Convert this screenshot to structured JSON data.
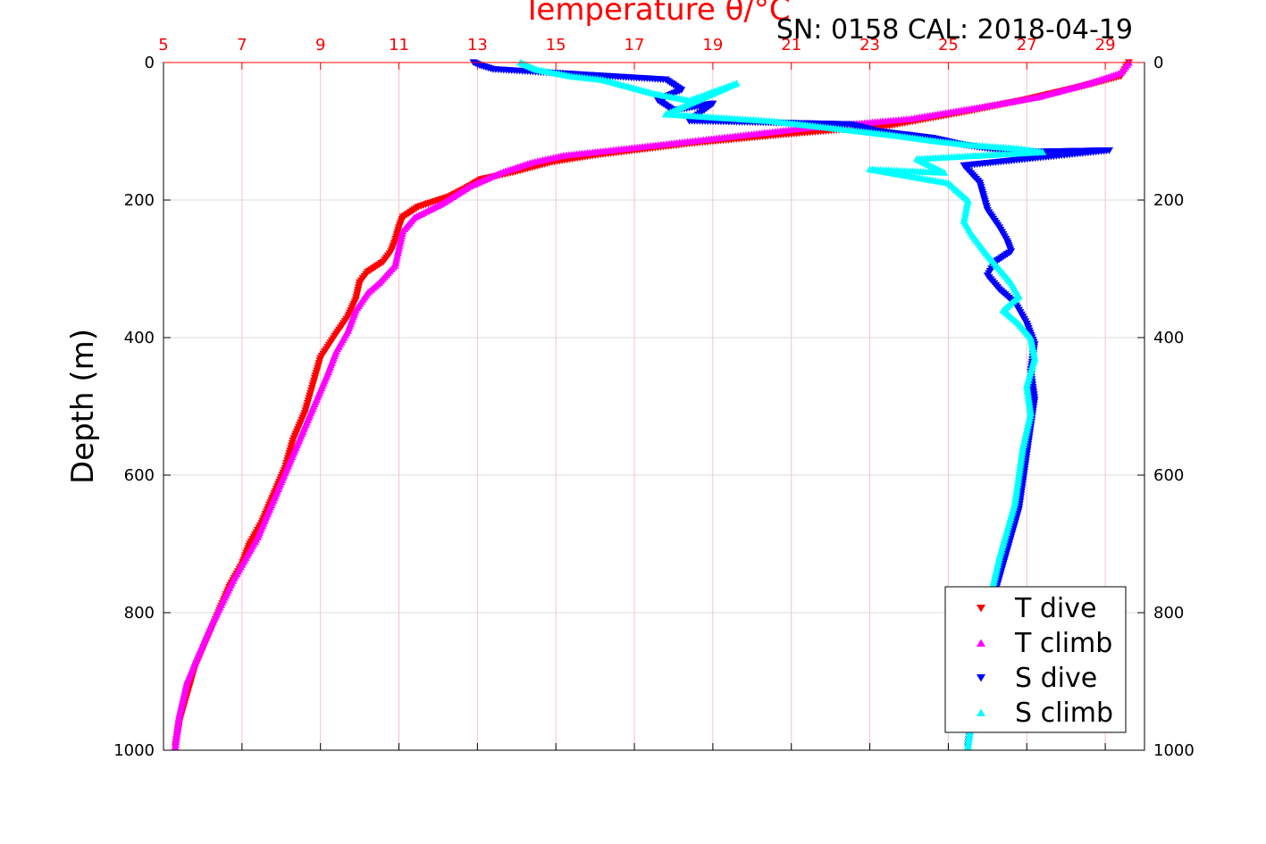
{
  "chart_data": {
    "type": "scatter",
    "title": "Temperature θ/°C",
    "corner_label": "SN: 0158  CAL: 2018-04-19",
    "xlabel": "Temperature θ/°C",
    "ylabel": "Depth (m)",
    "xlim": [
      5,
      30
    ],
    "ylim": [
      0,
      1000
    ],
    "y_reversed": true,
    "x_ticks": [
      5,
      7,
      9,
      11,
      13,
      15,
      17,
      19,
      21,
      23,
      25,
      27,
      29
    ],
    "y_ticks": [
      0,
      200,
      400,
      600,
      800,
      1000
    ],
    "grid": true,
    "legend_position": "bottom-right",
    "series": [
      {
        "name": "T dive",
        "color": "#ff0000",
        "marker": "triangle-down",
        "x": [
          29.6,
          29.4,
          28.4,
          26.9,
          25.6,
          23.5,
          20.8,
          18.4,
          16.0,
          14.9,
          13.9,
          13.1,
          12.8,
          12.3,
          11.5,
          11.1,
          11.0,
          10.9,
          10.8,
          10.6,
          10.2,
          10.0,
          9.9,
          9.7,
          9.4,
          9.0,
          8.8,
          8.6,
          8.3,
          8.1,
          7.8,
          7.5,
          7.2,
          7.0,
          6.7,
          6.4,
          6.1,
          5.8,
          5.6,
          5.4,
          5.3
        ],
        "y": [
          0,
          20,
          35,
          55,
          70,
          92,
          105,
          118,
          135,
          145,
          160,
          170,
          180,
          195,
          210,
          225,
          240,
          260,
          275,
          290,
          305,
          320,
          345,
          370,
          395,
          430,
          470,
          510,
          550,
          590,
          630,
          670,
          700,
          730,
          760,
          800,
          840,
          880,
          920,
          960,
          995
        ]
      },
      {
        "name": "T climb",
        "color": "#ff00ff",
        "marker": "triangle-up",
        "x": [
          29.6,
          29.4,
          28.6,
          27.3,
          25.8,
          24.0,
          21.4,
          19.1,
          16.8,
          15.2,
          14.4,
          13.6,
          12.8,
          12.1,
          11.4,
          11.1,
          11.0,
          10.9,
          10.5,
          10.2,
          9.9,
          9.7,
          9.4,
          9.2,
          8.9,
          8.6,
          8.3,
          8.0,
          7.7,
          7.4,
          7.1,
          6.8,
          6.5,
          6.2,
          5.9,
          5.6,
          5.4,
          5.3
        ],
        "y": [
          0,
          15,
          30,
          50,
          65,
          82,
          95,
          110,
          125,
          135,
          145,
          160,
          180,
          205,
          225,
          245,
          270,
          295,
          320,
          335,
          360,
          390,
          420,
          450,
          490,
          530,
          570,
          610,
          650,
          690,
          720,
          750,
          785,
          820,
          860,
          900,
          950,
          995
        ]
      },
      {
        "name": "S dive",
        "color": "#0000ff",
        "marker": "triangle-down",
        "x": [
          12.9,
          13.1,
          13.4,
          17.8,
          18.2,
          17.6,
          18.0,
          19.0,
          18.4,
          22.5,
          23.2,
          24.6,
          25.4,
          26.0,
          27.2,
          29.1,
          25.4,
          25.8,
          25.9,
          26.0,
          26.3,
          26.5,
          26.6,
          26.2,
          26.0,
          26.3,
          26.7,
          27.0,
          27.2,
          27.1,
          27.2,
          27.1,
          27.0,
          26.9,
          26.8,
          26.6,
          26.4,
          26.2,
          26.0,
          25.9,
          25.7,
          25.5
        ],
        "y": [
          0,
          5,
          10,
          25,
          40,
          55,
          70,
          60,
          85,
          90,
          100,
          110,
          120,
          125,
          130,
          128,
          150,
          175,
          195,
          215,
          240,
          260,
          275,
          290,
          310,
          330,
          350,
          380,
          410,
          450,
          490,
          530,
          570,
          610,
          650,
          690,
          730,
          770,
          810,
          860,
          920,
          995
        ]
      },
      {
        "name": "S climb",
        "color": "#00ffff",
        "marker": "triangle-up",
        "x": [
          14.1,
          14.5,
          15.4,
          16.2,
          17.5,
          18.4,
          19.6,
          17.8,
          20.5,
          22.0,
          23.5,
          24.8,
          25.6,
          26.8,
          27.4,
          24.2,
          24.9,
          23.0,
          25.0,
          25.5,
          25.4,
          25.6,
          25.8,
          26.0,
          26.3,
          26.6,
          26.8,
          26.4,
          26.8,
          27.1,
          27.2,
          27.0,
          27.1,
          26.9,
          26.8,
          26.7,
          26.5,
          26.3,
          26.1,
          25.9,
          25.7,
          25.5
        ],
        "y": [
          0,
          10,
          20,
          25,
          45,
          55,
          30,
          75,
          85,
          95,
          105,
          115,
          120,
          125,
          130,
          140,
          160,
          155,
          175,
          200,
          230,
          250,
          265,
          280,
          300,
          320,
          340,
          360,
          380,
          400,
          430,
          470,
          510,
          560,
          600,
          640,
          680,
          720,
          770,
          820,
          900,
          995
        ]
      }
    ]
  }
}
